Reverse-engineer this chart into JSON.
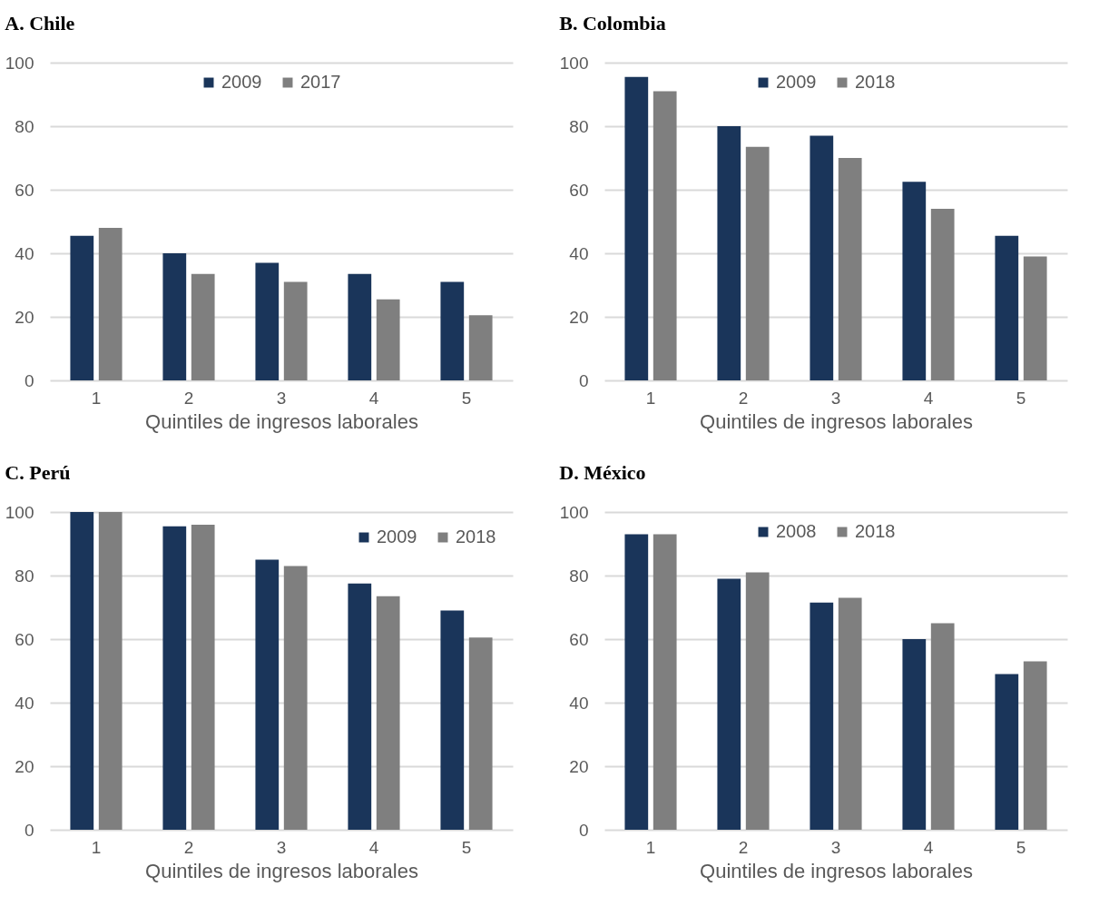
{
  "chart_data": [
    {
      "type": "bar",
      "title": "A.  Chile",
      "xlabel": "Quintiles de ingresos laborales",
      "categories": [
        "1",
        "2",
        "3",
        "4",
        "5"
      ],
      "series": [
        {
          "name": "2009",
          "color": "#1a355a",
          "values": [
            45.5,
            40,
            37,
            33.5,
            31
          ]
        },
        {
          "name": "2017",
          "color": "#7f7f7f",
          "values": [
            48,
            33.5,
            31,
            25.5,
            20.5
          ]
        }
      ],
      "ylim": [
        0,
        100
      ],
      "yticks": [
        0,
        20,
        40,
        60,
        80,
        100
      ],
      "grid": "y",
      "legend": "top"
    },
    {
      "type": "bar",
      "title": "B.  Colombia",
      "xlabel": "Quintiles de ingresos laborales",
      "categories": [
        "1",
        "2",
        "3",
        "4",
        "5"
      ],
      "series": [
        {
          "name": "2009",
          "color": "#1a355a",
          "values": [
            95.5,
            80,
            77,
            62.5,
            45.5
          ]
        },
        {
          "name": "2018",
          "color": "#7f7f7f",
          "values": [
            91,
            73.5,
            70,
            54,
            39
          ]
        }
      ],
      "ylim": [
        0,
        100
      ],
      "yticks": [
        0,
        20,
        40,
        60,
        80,
        100
      ],
      "grid": "y",
      "legend": "top"
    },
    {
      "type": "bar",
      "title": "C.  Perú",
      "xlabel": "Quintiles de ingresos laborales",
      "categories": [
        "1",
        "2",
        "3",
        "4",
        "5"
      ],
      "series": [
        {
          "name": "2009",
          "color": "#1a355a",
          "values": [
            100,
            95.5,
            85,
            77.5,
            69
          ]
        },
        {
          "name": "2018",
          "color": "#7f7f7f",
          "values": [
            100,
            96,
            83,
            73.5,
            60.5
          ]
        }
      ],
      "ylim": [
        0,
        100
      ],
      "yticks": [
        0,
        20,
        40,
        60,
        80,
        100
      ],
      "grid": "y",
      "legend": "top right"
    },
    {
      "type": "bar",
      "title": "D.  México",
      "xlabel": "Quintiles de ingresos laborales",
      "categories": [
        "1",
        "2",
        "3",
        "4",
        "5"
      ],
      "series": [
        {
          "name": "2008",
          "color": "#1a355a",
          "values": [
            93,
            79,
            71.5,
            60,
            49
          ]
        },
        {
          "name": "2018",
          "color": "#7f7f7f",
          "values": [
            93,
            81,
            73,
            65,
            53
          ]
        }
      ],
      "ylim": [
        0,
        100
      ],
      "yticks": [
        0,
        20,
        40,
        60,
        80,
        100
      ],
      "grid": "y",
      "legend": "top"
    }
  ]
}
